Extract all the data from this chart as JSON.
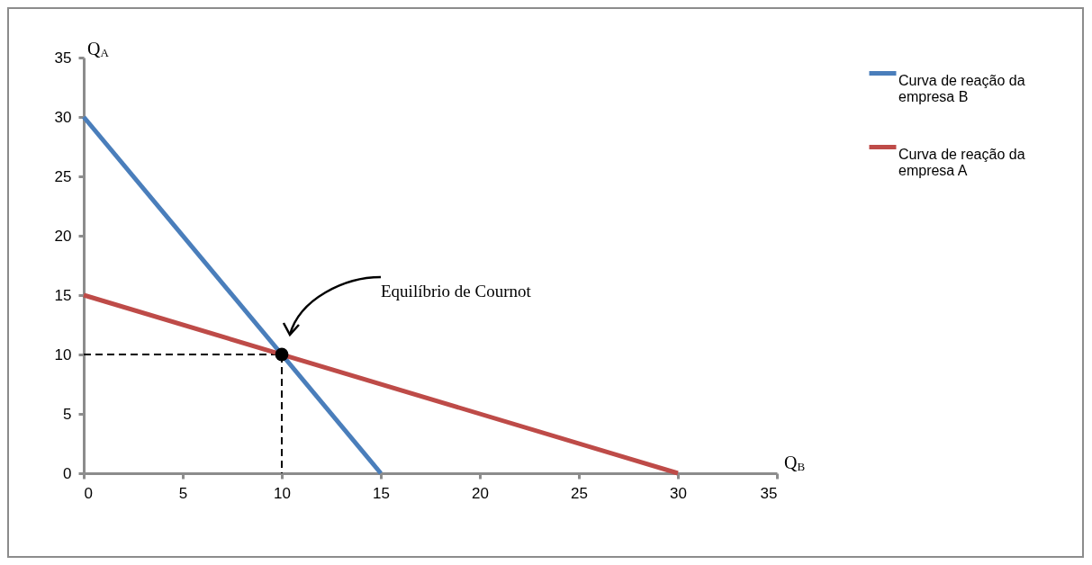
{
  "chart_data": {
    "type": "line",
    "xlabel": "Q$_{B}$",
    "ylabel": "Q$_{A}$",
    "xlim": [
      0,
      35
    ],
    "ylim": [
      0,
      35
    ],
    "xticks": [
      0,
      5,
      10,
      15,
      20,
      25,
      30,
      35
    ],
    "yticks": [
      0,
      5,
      10,
      15,
      20,
      25,
      30,
      35
    ],
    "grid": false,
    "legend": "right",
    "marker": "none",
    "line_style": "solid",
    "series": [
      {
        "type": "line",
        "color": "#000000",
        "line_style": "dashed",
        "x": [
          0,
          10,
          10
        ],
        "values": [
          10,
          10,
          0
        ]
      },
      {
        "name": "Curva de reação da empresa B",
        "color": "#4a7ebb",
        "x": [
          0,
          15
        ],
        "values": [
          30,
          0
        ]
      },
      {
        "name": "Curva de reação da empresa A",
        "color": "#be4b48",
        "x": [
          0,
          30
        ],
        "values": [
          15,
          0
        ]
      },
      {
        "type": "scatter",
        "color": "#000000",
        "marker": "circle",
        "x": [
          10
        ],
        "values": [
          10
        ]
      }
    ],
    "annotations": [
      "Equilíbrio de Cournot"
    ]
  }
}
